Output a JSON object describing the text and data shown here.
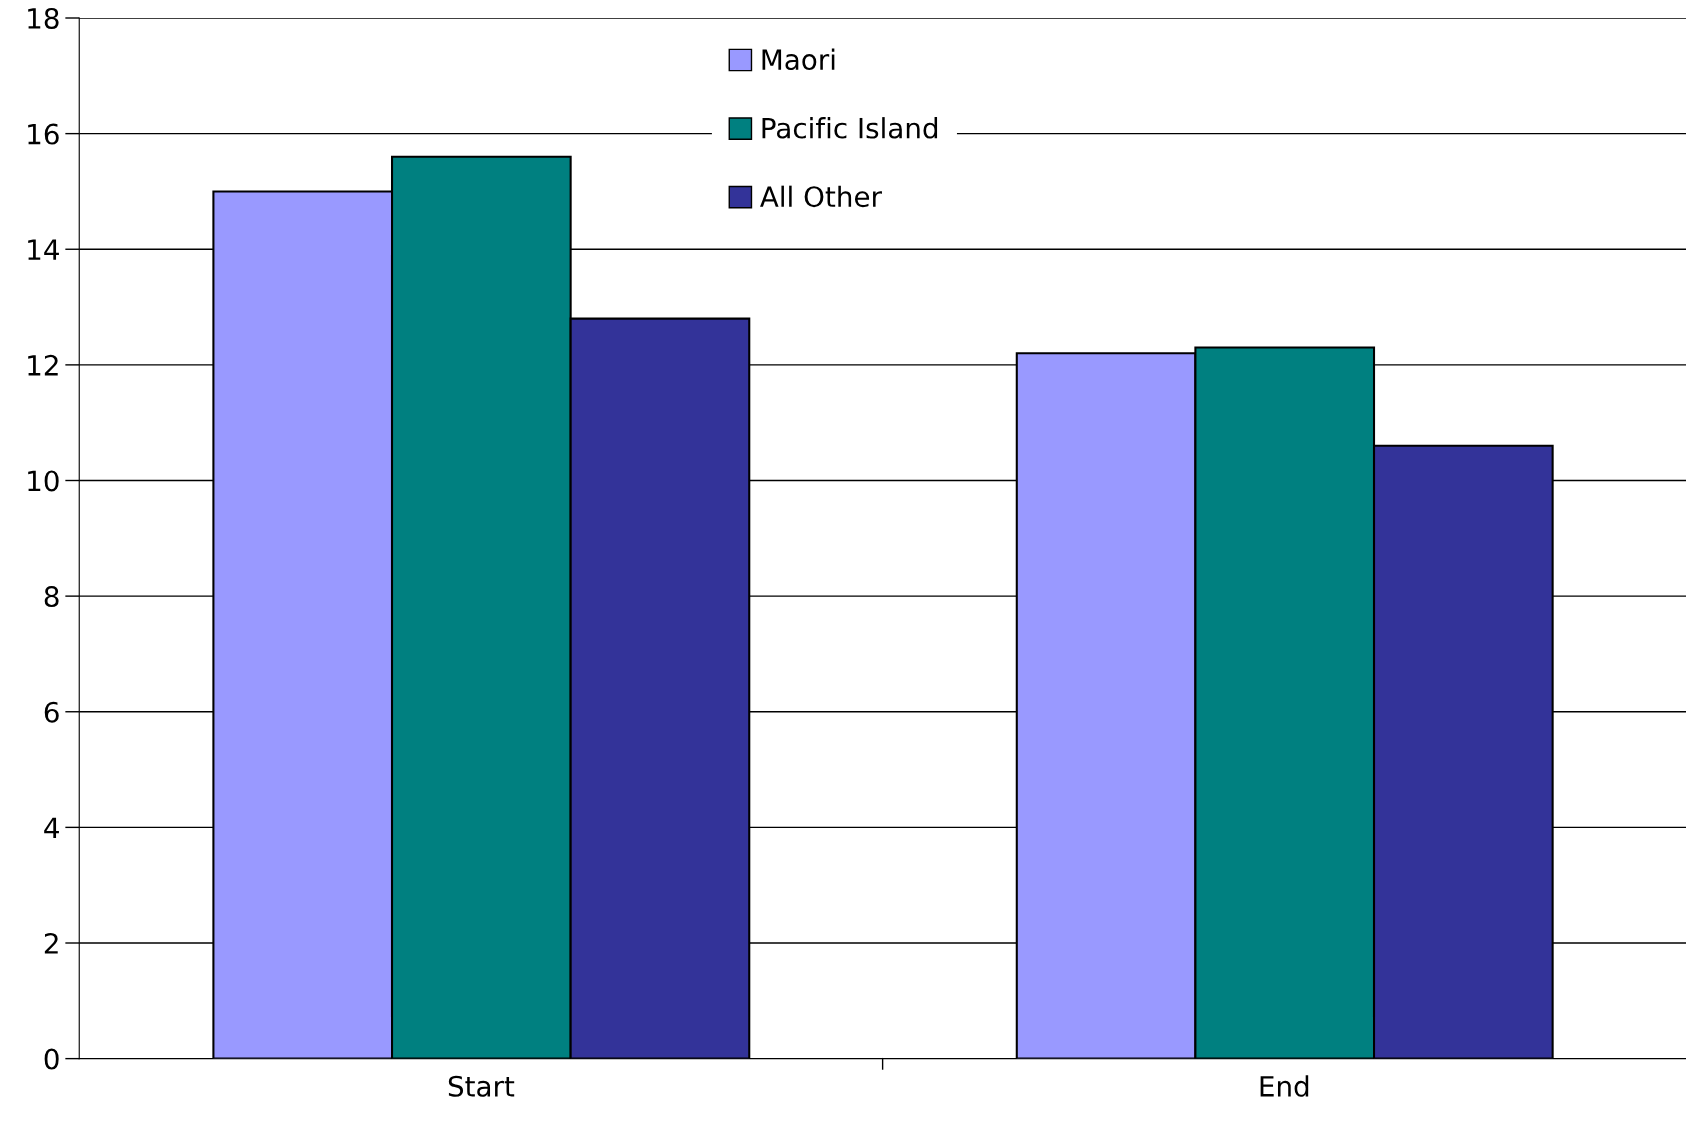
{
  "chart_data": {
    "type": "bar",
    "categories": [
      "Start",
      "End"
    ],
    "series": [
      {
        "name": "Maori",
        "color": "#9999ff",
        "values": [
          15,
          12.2
        ]
      },
      {
        "name": "Pacific Island",
        "color": "#008080",
        "values": [
          15.6,
          12.3
        ]
      },
      {
        "name": "All Other",
        "color": "#333399",
        "values": [
          12.8,
          10.6
        ]
      }
    ],
    "ylim": [
      0,
      18
    ],
    "yticks": [
      0,
      2,
      4,
      6,
      8,
      10,
      12,
      14,
      16,
      18
    ],
    "grid": "y",
    "legend": "top"
  }
}
